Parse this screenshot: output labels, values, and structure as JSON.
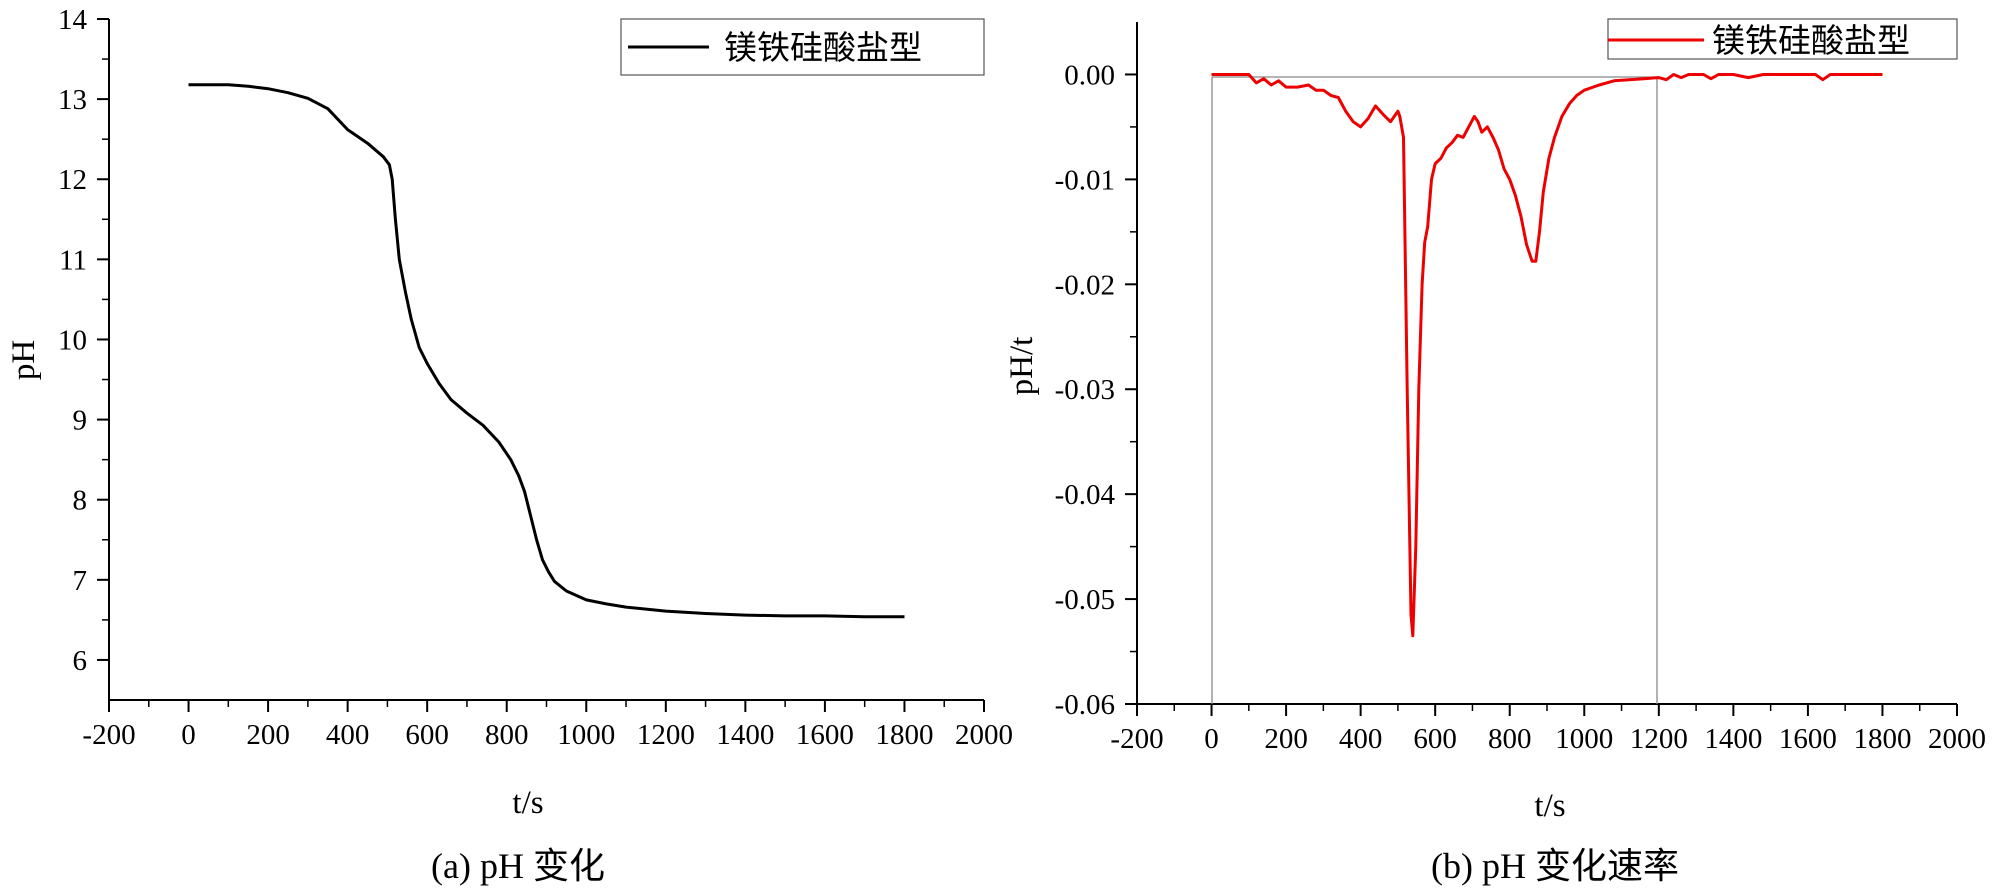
{
  "chart_data": [
    {
      "type": "line",
      "caption": "(a) pH 变化",
      "xlabel": "t/s",
      "ylabel": "pH",
      "xlim": [
        -200,
        2000
      ],
      "ylim": [
        5.5,
        14
      ],
      "x_ticks": [
        -200,
        0,
        200,
        400,
        600,
        800,
        1000,
        1200,
        1400,
        1600,
        1800,
        2000
      ],
      "y_ticks": [
        6,
        7,
        8,
        9,
        10,
        11,
        12,
        13,
        14
      ],
      "legend_position": "top-right",
      "grid": false,
      "series": [
        {
          "name": "镁铁硅酸盐型",
          "color": "#000000",
          "points": [
            [
              0,
              13.18
            ],
            [
              50,
              13.18
            ],
            [
              100,
              13.18
            ],
            [
              150,
              13.16
            ],
            [
              200,
              13.13
            ],
            [
              250,
              13.08
            ],
            [
              300,
              13.01
            ],
            [
              350,
              12.88
            ],
            [
              400,
              12.62
            ],
            [
              450,
              12.45
            ],
            [
              490,
              12.28
            ],
            [
              505,
              12.18
            ],
            [
              512,
              12.0
            ],
            [
              520,
              11.5
            ],
            [
              530,
              11.0
            ],
            [
              545,
              10.6
            ],
            [
              560,
              10.25
            ],
            [
              580,
              9.9
            ],
            [
              600,
              9.7
            ],
            [
              630,
              9.45
            ],
            [
              660,
              9.25
            ],
            [
              700,
              9.08
            ],
            [
              740,
              8.93
            ],
            [
              780,
              8.72
            ],
            [
              810,
              8.5
            ],
            [
              830,
              8.3
            ],
            [
              845,
              8.1
            ],
            [
              860,
              7.8
            ],
            [
              875,
              7.5
            ],
            [
              890,
              7.25
            ],
            [
              905,
              7.1
            ],
            [
              920,
              6.98
            ],
            [
              950,
              6.86
            ],
            [
              1000,
              6.75
            ],
            [
              1050,
              6.7
            ],
            [
              1100,
              6.66
            ],
            [
              1200,
              6.61
            ],
            [
              1300,
              6.58
            ],
            [
              1400,
              6.56
            ],
            [
              1500,
              6.55
            ],
            [
              1600,
              6.55
            ],
            [
              1700,
              6.54
            ],
            [
              1800,
              6.54
            ]
          ]
        }
      ]
    },
    {
      "type": "line",
      "caption": "(b) pH 变化速率",
      "xlabel": "t/s",
      "ylabel": "pH/t",
      "xlim": [
        -200,
        2000
      ],
      "ylim": [
        -0.06,
        0.005
      ],
      "x_ticks": [
        -200,
        0,
        200,
        400,
        600,
        800,
        1000,
        1200,
        1400,
        1600,
        1800,
        2000
      ],
      "y_ticks": [
        0.0,
        -0.01,
        -0.02,
        -0.03,
        -0.04,
        -0.05,
        -0.06
      ],
      "y_tick_labels": [
        "0.00",
        "-0.01",
        "-0.02",
        "-0.03",
        "-0.04",
        "-0.05",
        "-0.06"
      ],
      "legend_position": "top-right",
      "grid": false,
      "series": [
        {
          "name": "镁铁硅酸盐型",
          "color": "#ee0000",
          "points": [
            [
              0,
              0
            ],
            [
              100,
              0
            ],
            [
              120,
              -0.0008
            ],
            [
              140,
              -0.0004
            ],
            [
              160,
              -0.001
            ],
            [
              180,
              -0.0006
            ],
            [
              200,
              -0.0012
            ],
            [
              230,
              -0.0012
            ],
            [
              260,
              -0.001
            ],
            [
              280,
              -0.0015
            ],
            [
              300,
              -0.0015
            ],
            [
              320,
              -0.002
            ],
            [
              340,
              -0.0022
            ],
            [
              360,
              -0.0035
            ],
            [
              380,
              -0.0045
            ],
            [
              400,
              -0.005
            ],
            [
              420,
              -0.0042
            ],
            [
              440,
              -0.003
            ],
            [
              460,
              -0.0038
            ],
            [
              480,
              -0.0045
            ],
            [
              500,
              -0.0035
            ],
            [
              505,
              -0.004
            ],
            [
              515,
              -0.006
            ],
            [
              525,
              -0.03
            ],
            [
              535,
              -0.0515
            ],
            [
              540,
              -0.0535
            ],
            [
              548,
              -0.045
            ],
            [
              556,
              -0.03
            ],
            [
              565,
              -0.02
            ],
            [
              572,
              -0.016
            ],
            [
              580,
              -0.0145
            ],
            [
              590,
              -0.01
            ],
            [
              600,
              -0.0085
            ],
            [
              615,
              -0.008
            ],
            [
              630,
              -0.007
            ],
            [
              645,
              -0.0065
            ],
            [
              660,
              -0.0058
            ],
            [
              675,
              -0.006
            ],
            [
              690,
              -0.005
            ],
            [
              705,
              -0.004
            ],
            [
              715,
              -0.0045
            ],
            [
              725,
              -0.0055
            ],
            [
              740,
              -0.005
            ],
            [
              755,
              -0.006
            ],
            [
              770,
              -0.0072
            ],
            [
              785,
              -0.009
            ],
            [
              800,
              -0.01
            ],
            [
              815,
              -0.0115
            ],
            [
              830,
              -0.0135
            ],
            [
              845,
              -0.0162
            ],
            [
              860,
              -0.0178
            ],
            [
              870,
              -0.0178
            ],
            [
              880,
              -0.015
            ],
            [
              890,
              -0.0112
            ],
            [
              905,
              -0.008
            ],
            [
              920,
              -0.006
            ],
            [
              940,
              -0.004
            ],
            [
              960,
              -0.0028
            ],
            [
              980,
              -0.002
            ],
            [
              1000,
              -0.0015
            ],
            [
              1040,
              -0.001
            ],
            [
              1080,
              -0.0006
            ],
            [
              1120,
              -0.0005
            ],
            [
              1160,
              -0.0004
            ],
            [
              1200,
              -0.0003
            ],
            [
              1220,
              -0.0005
            ],
            [
              1240,
              0
            ],
            [
              1260,
              -0.0003
            ],
            [
              1280,
              0
            ],
            [
              1320,
              0
            ],
            [
              1340,
              -0.0004
            ],
            [
              1360,
              0
            ],
            [
              1400,
              0
            ],
            [
              1440,
              -0.0003
            ],
            [
              1480,
              0
            ],
            [
              1560,
              0
            ],
            [
              1620,
              0
            ],
            [
              1640,
              -0.0005
            ],
            [
              1660,
              0
            ],
            [
              1700,
              0
            ],
            [
              1800,
              0
            ]
          ]
        }
      ]
    }
  ]
}
